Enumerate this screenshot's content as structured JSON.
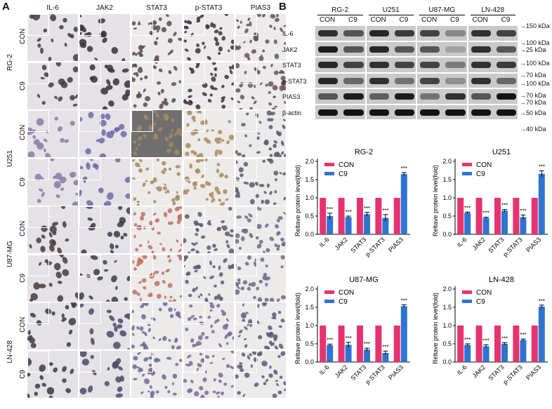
{
  "panel_a": {
    "letter": "A",
    "columns": [
      "IL-6",
      "JAK2",
      "STAT3",
      "p-STAT3",
      "PIAS3"
    ],
    "groups": [
      {
        "name": "RG-2",
        "rows": [
          "CON",
          "C9"
        ]
      },
      {
        "name": "U251",
        "rows": [
          "CON",
          "C9"
        ]
      },
      {
        "name": "U87-MG",
        "rows": [
          "CON",
          "C9"
        ]
      },
      {
        "name": "LN-428",
        "rows": [
          "CON",
          "C9"
        ]
      }
    ]
  },
  "panel_b": {
    "letter": "B",
    "cell_lines": [
      "RG-2",
      "U251",
      "U87-MG",
      "LN-428"
    ],
    "lanes": [
      "CON",
      "C9"
    ],
    "proteins": [
      "IL-6",
      "JAK2",
      "STAT3",
      "p-STAT3",
      "PIAS3",
      "β-actin"
    ],
    "markers": [
      "150 kDa",
      "100 kDa",
      "25 kDa",
      "100 kDa",
      "70 kDa",
      "100 kDa",
      "70 kDa",
      "70 kDa",
      "50 kDa",
      "40 kDa"
    ]
  },
  "chart_data": [
    {
      "type": "bar",
      "title": "RG-2",
      "ylabel": "Reltave protein level(fold)",
      "categories": [
        "IL-6",
        "JAK2",
        "STAT3",
        "p-STAT3",
        "PIAS3"
      ],
      "ylim": [
        0,
        2.0
      ],
      "yticks": [
        "0.0",
        "0.5",
        "1.0",
        "1.5",
        "2.0"
      ],
      "series": [
        {
          "name": "CON",
          "color": "#e6336f",
          "values": [
            1,
            1,
            1,
            1,
            1
          ],
          "errors": [
            0,
            0,
            0,
            0,
            0
          ]
        },
        {
          "name": "C9",
          "color": "#2f74d0",
          "values": [
            0.5,
            0.47,
            0.55,
            0.45,
            1.65
          ],
          "errors": [
            0.08,
            0.03,
            0.05,
            0.09,
            0.04
          ]
        }
      ],
      "significance": [
        "***",
        "***",
        "***",
        "***",
        "***"
      ]
    },
    {
      "type": "bar",
      "title": "U251",
      "ylabel": "Reltave protein level(fold)",
      "categories": [
        "IL-6",
        "JAK2",
        "STAT3",
        "p-STAT3",
        "PIAS3"
      ],
      "ylim": [
        0,
        2.0
      ],
      "yticks": [
        "0.0",
        "0.5",
        "1.0",
        "1.5",
        "2.0"
      ],
      "series": [
        {
          "name": "CON",
          "color": "#e6336f",
          "values": [
            1,
            1,
            1,
            1,
            1
          ],
          "errors": [
            0,
            0,
            0,
            0,
            0
          ]
        },
        {
          "name": "C9",
          "color": "#2f74d0",
          "values": [
            0.59,
            0.45,
            0.65,
            0.47,
            1.66
          ],
          "errors": [
            0.02,
            0.02,
            0.03,
            0.06,
            0.08
          ]
        }
      ],
      "significance": [
        "***",
        "***",
        "***",
        "***",
        "***"
      ]
    },
    {
      "type": "bar",
      "title": "U87-MG",
      "ylabel": "Reltave protein level(fold)",
      "categories": [
        "IL-6",
        "JAK2",
        "STAT3",
        "p-STAT3",
        "PIAS3"
      ],
      "ylim": [
        0,
        2.0
      ],
      "yticks": [
        "0.0",
        "0.5",
        "1.0",
        "1.5",
        "2.0"
      ],
      "series": [
        {
          "name": "CON",
          "color": "#e6336f",
          "values": [
            1,
            1,
            1,
            1,
            1
          ],
          "errors": [
            0,
            0,
            0,
            0,
            0
          ]
        },
        {
          "name": "C9",
          "color": "#2f74d0",
          "values": [
            0.46,
            0.47,
            0.34,
            0.25,
            1.53
          ],
          "errors": [
            0.03,
            0.07,
            0.04,
            0.05,
            0.04
          ]
        }
      ],
      "significance": [
        "***",
        "***",
        "***",
        "***",
        "***"
      ]
    },
    {
      "type": "bar",
      "title": "LN-428",
      "ylabel": "Reltave protein level(fold)",
      "categories": [
        "IL-6",
        "JAK2",
        "STAT3",
        "p-STAT3",
        "PIAS3"
      ],
      "ylim": [
        0,
        2.0
      ],
      "yticks": [
        "0.0",
        "0.5",
        "1.0",
        "1.5",
        "2.0"
      ],
      "series": [
        {
          "name": "CON",
          "color": "#e6336f",
          "values": [
            1,
            1,
            1,
            1,
            1
          ],
          "errors": [
            0,
            0,
            0,
            0,
            0
          ]
        },
        {
          "name": "C9",
          "color": "#2f74d0",
          "values": [
            0.47,
            0.43,
            0.5,
            0.6,
            1.52
          ],
          "errors": [
            0.03,
            0.04,
            0.03,
            0.03,
            0.04
          ]
        }
      ],
      "significance": [
        "***",
        "***",
        "***",
        "***",
        "***"
      ]
    }
  ]
}
